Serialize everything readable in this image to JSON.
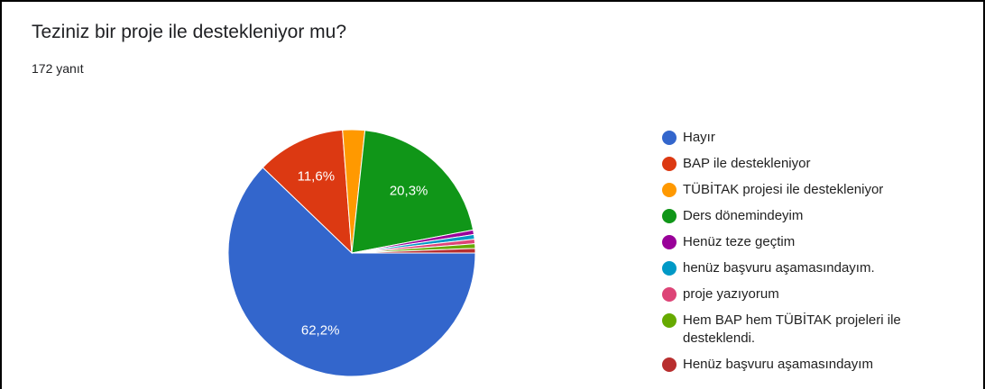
{
  "title": "Teziniz bir proje ile destekleniyor mu?",
  "subtitle": "172 yanıt",
  "chart_data": {
    "type": "pie",
    "categories": [
      "Hayır",
      "BAP ile destekleniyor",
      "TÜBİTAK projesi ile destekleniyor",
      "Ders dönemindeyim",
      "Henüz teze geçtim",
      "henüz başvuru aşamasındayım.",
      "proje yazıyorum",
      "Hem BAP hem TÜBİTAK projeleri ile desteklendi.",
      "Henüz başvuru aşamasındayım"
    ],
    "values": [
      62.2,
      11.6,
      2.9,
      20.3,
      0.6,
      0.6,
      0.6,
      0.6,
      0.6
    ],
    "value_labels": [
      "62,2%",
      "11,6%",
      null,
      "20,3%",
      null,
      null,
      null,
      null,
      null
    ],
    "colors": [
      "#3366cc",
      "#dc3912",
      "#ff9900",
      "#109618",
      "#990099",
      "#0099c6",
      "#dd4477",
      "#66aa00",
      "#b82e2e"
    ],
    "legend": "right"
  }
}
